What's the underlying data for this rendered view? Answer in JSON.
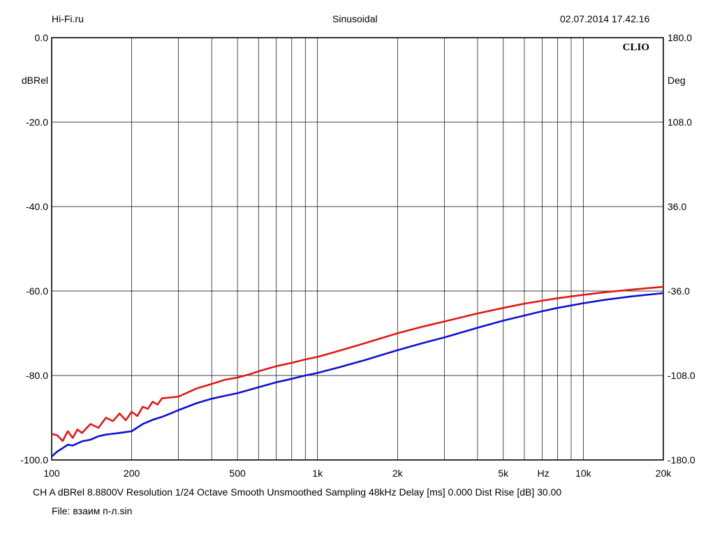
{
  "header": {
    "left": "Hi-Fi.ru",
    "center": "Sinusoidal",
    "right": "02.07.2014 17.42.16"
  },
  "brand": "CLIO",
  "footer": {
    "line1": "CH A   dBRel 8.8800V  Resolution 1/24 Octave   Smooth Unsmoothed   Sampling 48kHz   Delay [ms] 0.000   Dist Rise [dB] 30.00",
    "file": "File: взаим п-л.sin"
  },
  "colors": {
    "red": "#e01818",
    "blue": "#1010d0",
    "grid": "#000000"
  },
  "chart_data": {
    "type": "line",
    "x_scale": "log",
    "xlim": [
      100,
      20000
    ],
    "ylim": [
      -100,
      0
    ],
    "y2lim": [
      -180,
      180
    ],
    "grid": true,
    "ylabel": "dBRel",
    "y2label": "Deg",
    "xunit_label": "Hz",
    "xticks": [
      {
        "value": 100,
        "label": "100"
      },
      {
        "value": 200,
        "label": "200"
      },
      {
        "value": 500,
        "label": "500"
      },
      {
        "value": 1000,
        "label": "1k"
      },
      {
        "value": 2000,
        "label": "2k"
      },
      {
        "value": 5000,
        "label": "5k"
      },
      {
        "value": 10000,
        "label": "10k"
      },
      {
        "value": 20000,
        "label": "20k"
      }
    ],
    "yticks": [
      {
        "value": 0,
        "label": "0.0"
      },
      {
        "value": -20,
        "label": "-20.0"
      },
      {
        "value": -40,
        "label": "-40.0"
      },
      {
        "value": -60,
        "label": "-60.0"
      },
      {
        "value": -80,
        "label": "-80.0"
      },
      {
        "value": -100,
        "label": "-100.0"
      }
    ],
    "y2ticks": [
      {
        "value": 180,
        "label": "180.0"
      },
      {
        "value": 108,
        "label": "108.0"
      },
      {
        "value": 36,
        "label": "36.0"
      },
      {
        "value": -36,
        "label": "-36.0"
      },
      {
        "value": -108,
        "label": "-108.0"
      },
      {
        "value": -180,
        "label": "-180.0"
      }
    ],
    "series": [
      {
        "color": "#e01818",
        "x": [
          100,
          105,
          110,
          115,
          120,
          125,
          130,
          140,
          150,
          160,
          170,
          180,
          190,
          200,
          210,
          220,
          230,
          240,
          250,
          260,
          280,
          300,
          350,
          400,
          450,
          500,
          550,
          600,
          700,
          800,
          900,
          1000,
          1200,
          1500,
          2000,
          2500,
          3000,
          4000,
          5000,
          6000,
          7000,
          8000,
          10000,
          12000,
          15000,
          20000
        ],
        "y": [
          -93.8,
          -94.2,
          -95.5,
          -93.2,
          -94.8,
          -92.8,
          -93.6,
          -91.5,
          -92.4,
          -90.0,
          -90.8,
          -89.0,
          -90.6,
          -88.6,
          -89.6,
          -87.4,
          -87.9,
          -86.2,
          -86.9,
          -85.4,
          -85.2,
          -85.0,
          -83.1,
          -82.0,
          -81.0,
          -80.5,
          -79.8,
          -79.0,
          -77.8,
          -77.0,
          -76.2,
          -75.6,
          -74.2,
          -72.4,
          -70.0,
          -68.4,
          -67.2,
          -65.3,
          -64.0,
          -63.0,
          -62.3,
          -61.7,
          -60.9,
          -60.3,
          -59.7,
          -59.0
        ]
      },
      {
        "color": "#1010d0",
        "x": [
          100,
          105,
          110,
          115,
          120,
          130,
          140,
          150,
          160,
          170,
          180,
          190,
          200,
          220,
          240,
          260,
          280,
          300,
          350,
          400,
          450,
          500,
          600,
          700,
          800,
          900,
          1000,
          1200,
          1500,
          2000,
          2500,
          3000,
          4000,
          5000,
          6000,
          7000,
          8000,
          10000,
          12000,
          15000,
          20000
        ],
        "y": [
          -99.2,
          -98.0,
          -97.2,
          -96.4,
          -96.6,
          -95.6,
          -95.2,
          -94.4,
          -94.0,
          -93.8,
          -93.6,
          -93.4,
          -93.2,
          -91.5,
          -90.5,
          -89.8,
          -89.0,
          -88.2,
          -86.6,
          -85.5,
          -84.8,
          -84.2,
          -82.8,
          -81.6,
          -80.8,
          -80.0,
          -79.4,
          -78.1,
          -76.4,
          -74.0,
          -72.3,
          -71.0,
          -68.7,
          -67.0,
          -65.8,
          -64.8,
          -64.0,
          -62.9,
          -62.1,
          -61.3,
          -60.5
        ]
      }
    ]
  }
}
